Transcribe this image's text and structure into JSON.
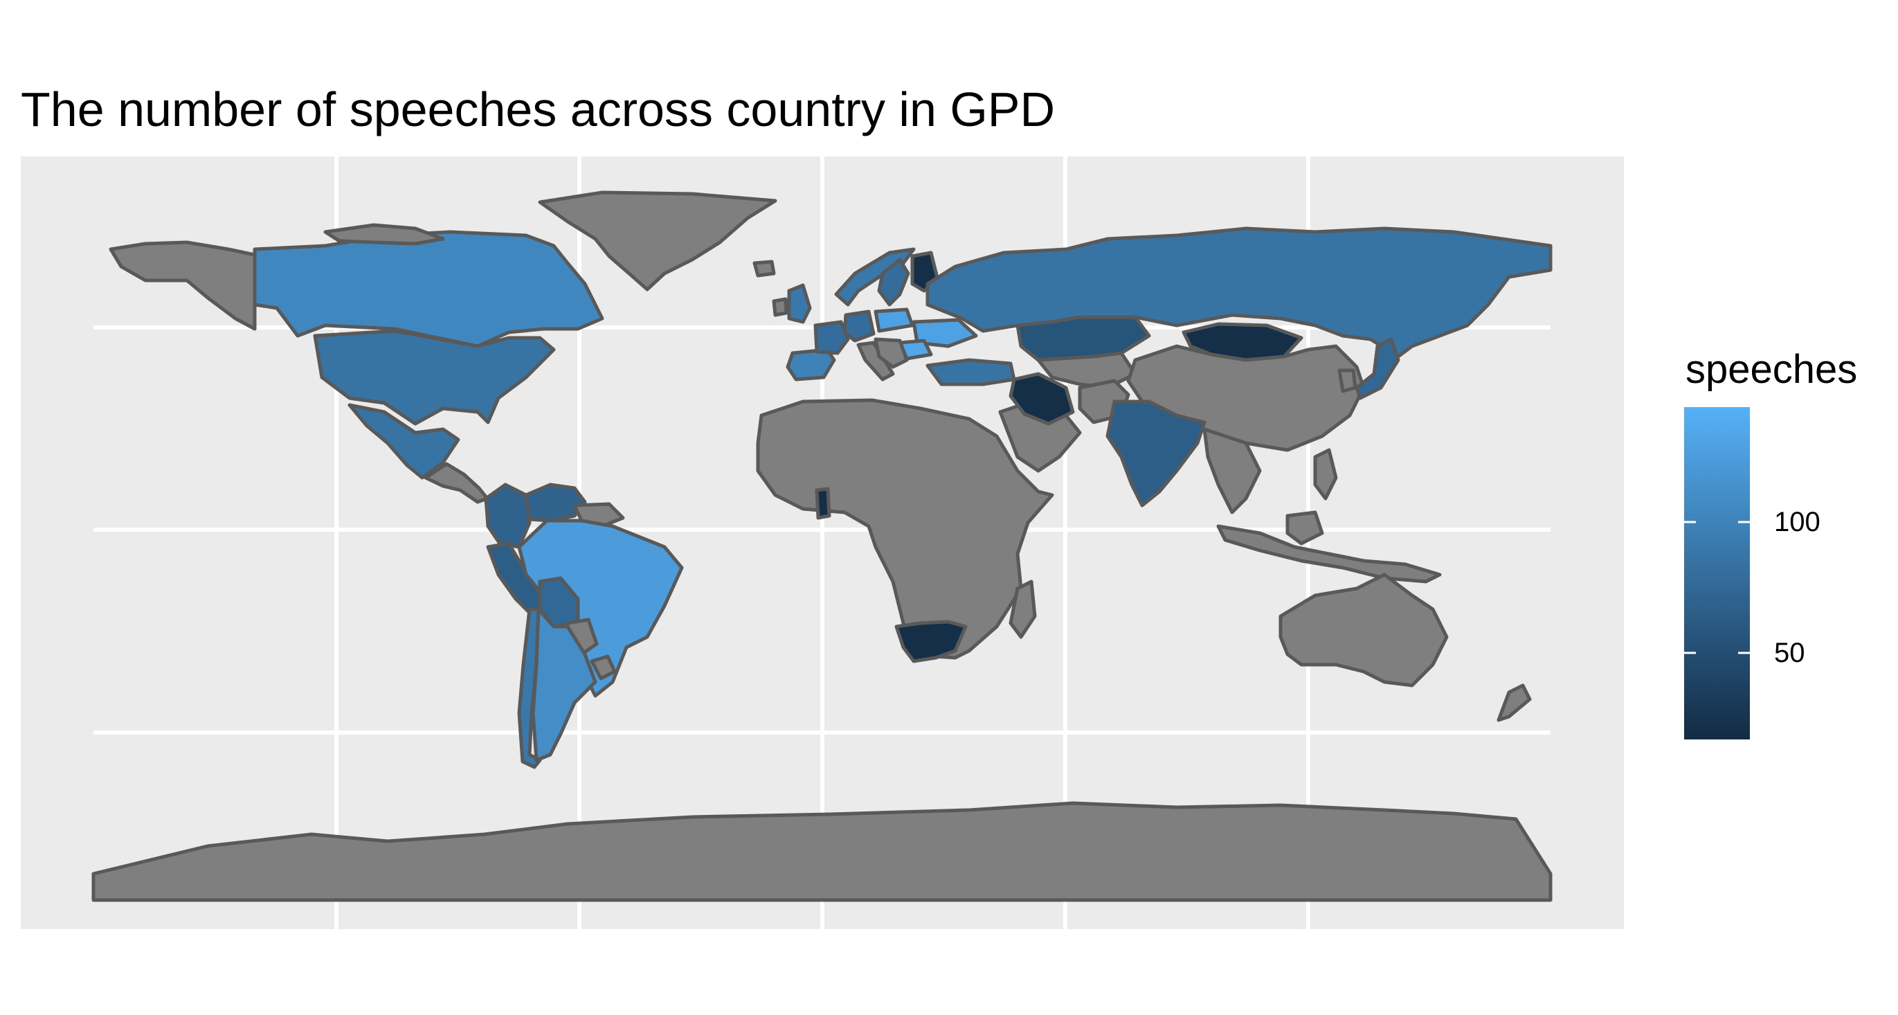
{
  "title": "The number of speeches across country in GPD",
  "legend": {
    "title": "speeches",
    "breaks": [
      "100",
      "50"
    ],
    "color_low": "#132B43",
    "color_high": "#56B1F7"
  },
  "colors": {
    "panel_background": "#EBEBEB",
    "grid": "#FFFFFF",
    "no_data": "#7F7F7F",
    "border": "#595959"
  },
  "chart_data": {
    "type": "choropleth",
    "variable": "speeches",
    "scale_range": [
      16,
      145
    ],
    "breaks": [
      50,
      100
    ],
    "no_data_fill": "#7F7F7F",
    "countries": [
      {
        "name": "Canada",
        "value": 105
      },
      {
        "name": "United States",
        "value": 85
      },
      {
        "name": "Mexico",
        "value": 85
      },
      {
        "name": "Brazil",
        "value": 125
      },
      {
        "name": "Argentina",
        "value": 110
      },
      {
        "name": "Colombia",
        "value": 70
      },
      {
        "name": "Venezuela",
        "value": 70
      },
      {
        "name": "Peru",
        "value": 65
      },
      {
        "name": "Bolivia",
        "value": 75
      },
      {
        "name": "Chile",
        "value": 90
      },
      {
        "name": "Russia",
        "value": 85
      },
      {
        "name": "Kazakhstan",
        "value": 55
      },
      {
        "name": "Mongolia",
        "value": 20
      },
      {
        "name": "Iran",
        "value": 20
      },
      {
        "name": "India",
        "value": 65
      },
      {
        "name": "Japan",
        "value": 75
      },
      {
        "name": "South Africa",
        "value": 20
      },
      {
        "name": "Ghana",
        "value": 20
      },
      {
        "name": "Finland",
        "value": 20
      },
      {
        "name": "Sweden",
        "value": 80
      },
      {
        "name": "Norway",
        "value": 90
      },
      {
        "name": "United Kingdom",
        "value": 90
      },
      {
        "name": "Spain",
        "value": 100
      },
      {
        "name": "France",
        "value": 80
      },
      {
        "name": "Germany",
        "value": 80
      },
      {
        "name": "Poland",
        "value": 130
      },
      {
        "name": "Ukraine",
        "value": 130
      },
      {
        "name": "Romania",
        "value": 135
      },
      {
        "name": "Turkey",
        "value": 85
      }
    ]
  }
}
